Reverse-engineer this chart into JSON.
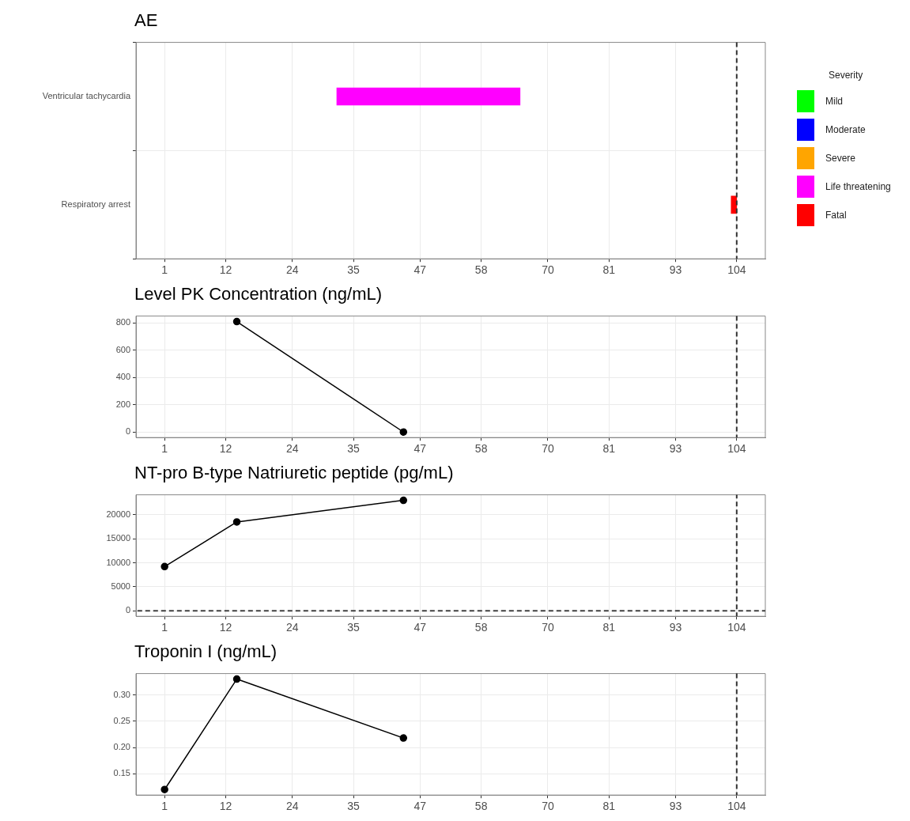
{
  "chart_data": [
    {
      "type": "bar",
      "orientation": "horizontal",
      "title": "AE",
      "legend_title": "Severity",
      "legend": "right",
      "grid": true,
      "categories": [
        "Ventricular tachycardia",
        "Respiratory arrest"
      ],
      "series": [
        {
          "name": "Mild",
          "color": "#00ff00",
          "values": [
            null,
            null
          ],
          "base": [
            null,
            null
          ]
        },
        {
          "name": "Moderate",
          "color": "#0000ff",
          "values": [
            null,
            null
          ],
          "base": [
            null,
            null
          ]
        },
        {
          "name": "Severe",
          "color": "#ffa500",
          "values": [
            null,
            null
          ],
          "base": [
            null,
            null
          ]
        },
        {
          "name": "Life threatening",
          "color": "#ff00ff",
          "values": [
            33,
            null
          ],
          "base": [
            32,
            null
          ]
        },
        {
          "name": "Fatal",
          "color": "#ff0000",
          "values": [
            null,
            1
          ],
          "base": [
            null,
            103
          ]
        }
      ],
      "xlim": [
        -4.15,
        109.15
      ],
      "xticks": [
        1,
        12,
        24,
        35,
        47,
        58,
        70,
        81,
        93,
        104
      ],
      "ref_lines": [
        {
          "axis": "x",
          "value": 104,
          "line_style": "dashed"
        }
      ]
    },
    {
      "type": "line",
      "title": "Level PK Concentration (ng/mL)",
      "grid": true,
      "marker": "circle",
      "x": [
        14,
        44
      ],
      "series": [
        {
          "color": "#000000",
          "values": [
            810,
            0
          ]
        }
      ],
      "xlim": [
        -4.15,
        109.15
      ],
      "xticks": [
        1,
        12,
        24,
        35,
        47,
        58,
        70,
        81,
        93,
        104
      ],
      "ylim": [
        -40.5,
        850.5
      ],
      "yticks": [
        0,
        200,
        400,
        600,
        800
      ],
      "ref_lines": [
        {
          "axis": "x",
          "value": 104,
          "line_style": "dashed"
        }
      ]
    },
    {
      "type": "line",
      "title": "NT-pro B-type Natriuretic peptide (pg/mL)",
      "grid": true,
      "marker": "circle",
      "x": [
        1,
        14,
        44
      ],
      "series": [
        {
          "color": "#000000",
          "values": [
            9200,
            18500,
            23000
          ]
        }
      ],
      "xlim": [
        -4.15,
        109.15
      ],
      "xticks": [
        1,
        12,
        24,
        35,
        47,
        58,
        70,
        81,
        93,
        104
      ],
      "ylim": [
        -1150,
        24150
      ],
      "yticks": [
        0,
        5000,
        10000,
        15000,
        20000
      ],
      "ref_lines": [
        {
          "axis": "x",
          "value": 104,
          "line_style": "dashed",
          "color": "#333333"
        },
        {
          "axis": "y",
          "value": 0,
          "line_style": "dashed",
          "color": "#404040"
        }
      ]
    },
    {
      "type": "line",
      "title": "Troponin I (ng/mL)",
      "grid": true,
      "marker": "circle",
      "x": [
        1,
        14,
        44
      ],
      "series": [
        {
          "color": "#000000",
          "values": [
            0.12,
            0.33,
            0.218
          ]
        }
      ],
      "xlim": [
        -4.15,
        109.15
      ],
      "xticks": [
        1,
        12,
        24,
        35,
        47,
        58,
        70,
        81,
        93,
        104
      ],
      "ylim": [
        0.1095,
        0.3405
      ],
      "yticks": [
        {
          "value": 0.15,
          "label": "0.15"
        },
        {
          "value": 0.2,
          "label": "0.20"
        },
        {
          "value": 0.25,
          "label": "0.25"
        },
        {
          "value": 0.3,
          "label": "0.30"
        }
      ],
      "ref_lines": [
        {
          "axis": "x",
          "value": 104,
          "line_style": "dashed"
        }
      ]
    }
  ]
}
